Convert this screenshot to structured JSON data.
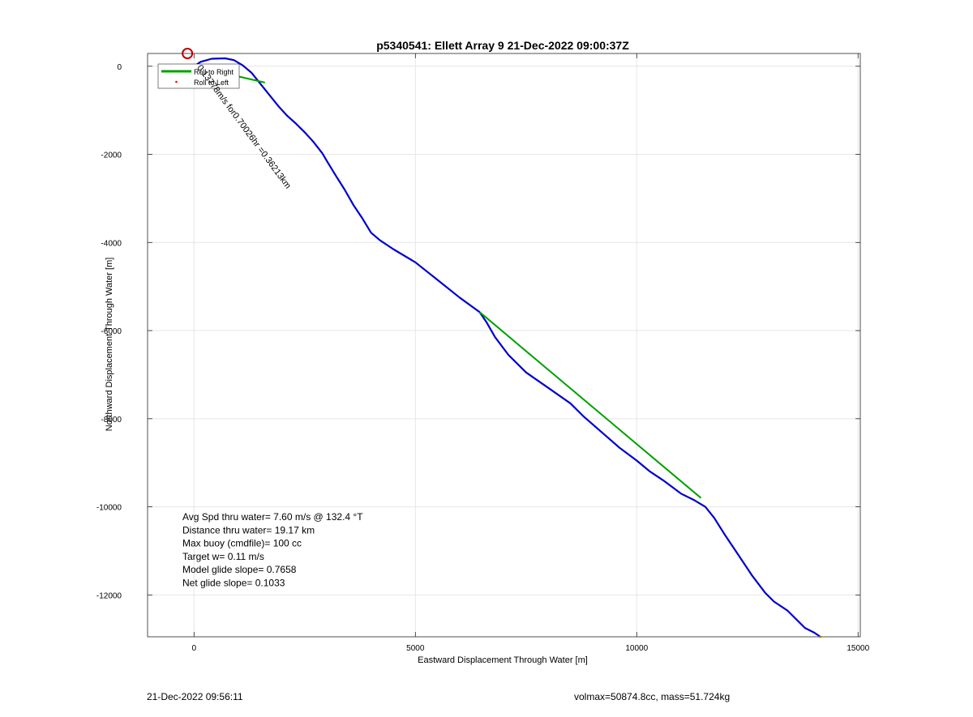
{
  "chart_data": {
    "type": "line",
    "title": "p5340541: Ellett Array 9 21-Dec-2022 09:00:37Z",
    "xlabel": "Eastward Displacement Through Water [m]",
    "ylabel": "Northward Displacement Through Water [m]",
    "xlim": [
      -1050,
      15050
    ],
    "ylim": [
      -12950,
      290
    ],
    "xticks": [
      0,
      5000,
      10000,
      15000
    ],
    "yticks": [
      0,
      -2000,
      -4000,
      -6000,
      -8000,
      -10000,
      -12000
    ],
    "grid": true,
    "legend_position": "top-left",
    "legend": [
      {
        "label": "Roll to Right",
        "color": "#00a000",
        "marker": "line"
      },
      {
        "label": "Roll to Left",
        "color": "#ff0000",
        "marker": "dot"
      }
    ],
    "series": [
      {
        "color": "#0000c8",
        "x": [
          0,
          150,
          400,
          700,
          900,
          1100,
          1300,
          1500,
          1700,
          1900,
          2100,
          2300,
          2500,
          2700,
          2900,
          3000,
          3200,
          3400,
          3600,
          3800,
          4000,
          4200,
          4500,
          5000,
          5500,
          6000,
          6450,
          6600,
          6800,
          7100,
          7500,
          8000,
          8500,
          8800,
          9200,
          9600,
          10000,
          10300,
          10600,
          11000,
          11300,
          11550,
          11750,
          12000,
          12300,
          12600,
          12900,
          13100,
          13400,
          13600,
          13800,
          14000,
          14150
        ],
        "y": [
          0,
          100,
          170,
          180,
          140,
          20,
          -150,
          -400,
          -650,
          -900,
          -1120,
          -1300,
          -1500,
          -1720,
          -1980,
          -2150,
          -2480,
          -2800,
          -3150,
          -3450,
          -3780,
          -3950,
          -4150,
          -4450,
          -4850,
          -5250,
          -5580,
          -5800,
          -6150,
          -6550,
          -6950,
          -7300,
          -7650,
          -7950,
          -8300,
          -8650,
          -8950,
          -9200,
          -9400,
          -9700,
          -9850,
          -10000,
          -10250,
          -10650,
          -11100,
          -11550,
          -11950,
          -12150,
          -12350,
          -12550,
          -12750,
          -12850,
          -12950
        ]
      },
      {
        "color": "#00a000",
        "x": [
          0,
          1600
        ],
        "y": [
          0,
          -370
        ]
      },
      {
        "color": "#00a000",
        "x": [
          6450,
          11450
        ],
        "y": [
          -5580,
          -9800
        ]
      }
    ],
    "annotations": [
      {
        "text": "0.13778m/s for0.70026hr =0.36213km",
        "x": 60,
        "y": -30,
        "rotation_deg": 53.5
      }
    ],
    "start_marker": {
      "x": -150,
      "y": 290,
      "color": "#c00000"
    },
    "stats": [
      "Avg Spd thru water=  7.60 m/s @ 132.4 °T",
      "Distance thru water= 19.17 km",
      "Max buoy (cmdfile)= 100 cc",
      "Target w= 0.11 m/s",
      "Model glide slope= 0.7658",
      "Net glide slope= 0.1033"
    ]
  },
  "footer": {
    "timestamp": "21-Dec-2022 09:56:11",
    "info": "volmax=50874.8cc, mass=51.724kg"
  }
}
